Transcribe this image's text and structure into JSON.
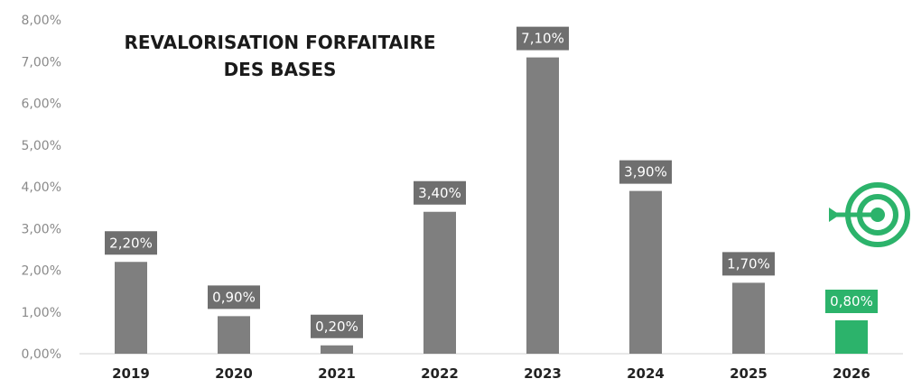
{
  "chart_data": {
    "type": "bar",
    "title_lines": [
      "REVALORISATION FORFAITAIRE",
      "DES BASES"
    ],
    "categories": [
      "2019",
      "2020",
      "2021",
      "2022",
      "2023",
      "2024",
      "2025",
      "2026"
    ],
    "values": [
      2.2,
      0.9,
      0.2,
      3.4,
      7.1,
      3.9,
      1.7,
      0.8
    ],
    "value_labels": [
      "2,20%",
      "0,90%",
      "0,20%",
      "3,40%",
      "7,10%",
      "3,90%",
      "1,70%",
      "0,80%"
    ],
    "y_ticks": [
      "0,00%",
      "1,00%",
      "2,00%",
      "3,00%",
      "4,00%",
      "5,00%",
      "6,00%",
      "7,00%",
      "8,00%"
    ],
    "ylim": [
      0,
      8
    ],
    "grid": false,
    "xlabel": "",
    "ylabel": "",
    "highlight_category": "2026",
    "colors": {
      "bar": "#7f7f7f",
      "label_box": "#6f6f6f",
      "highlight": "#2cb36b",
      "target_icon": "#2cb36b"
    },
    "icons": {
      "target": "target-icon"
    }
  }
}
